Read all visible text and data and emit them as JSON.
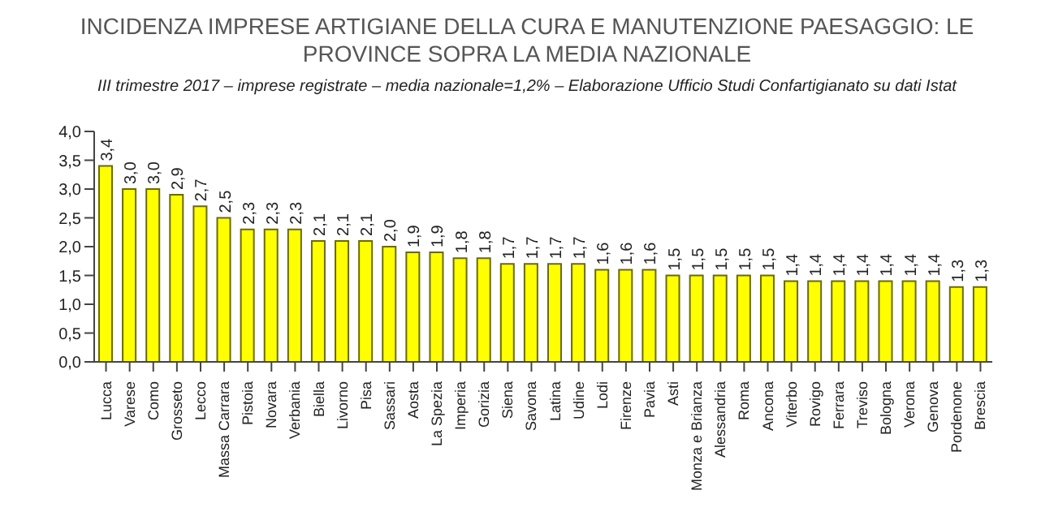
{
  "chart_data": {
    "type": "bar",
    "title": "INCIDENZA IMPRESE ARTIGIANE DELLA CURA E MANUTENZIONE PAESAGGIO: LE PROVINCE SOPRA LA MEDIA NAZIONALE",
    "subtitle": "III trimestre 2017 – imprese registrate – media nazionale=1,2% – Elaborazione Ufficio Studi Confartigianato su dati Istat",
    "categories": [
      "Lucca",
      "Varese",
      "Como",
      "Grosseto",
      "Lecco",
      "Massa Carrara",
      "Pistoia",
      "Novara",
      "Verbania",
      "Biella",
      "Livorno",
      "Pisa",
      "Sassari",
      "Aosta",
      "La Spezia",
      "Imperia",
      "Gorizia",
      "Siena",
      "Savona",
      "Latina",
      "Udine",
      "Lodi",
      "Firenze",
      "Pavia",
      "Asti",
      "Monza e Brianza",
      "Alessandria",
      "Roma",
      "Ancona",
      "Viterbo",
      "Rovigo",
      "Ferrara",
      "Treviso",
      "Bologna",
      "Verona",
      "Genova",
      "Pordenone",
      "Brescia"
    ],
    "values": [
      3.4,
      3.0,
      3.0,
      2.9,
      2.7,
      2.5,
      2.3,
      2.3,
      2.3,
      2.1,
      2.1,
      2.1,
      2.0,
      1.9,
      1.9,
      1.8,
      1.8,
      1.7,
      1.7,
      1.7,
      1.7,
      1.6,
      1.6,
      1.6,
      1.5,
      1.5,
      1.5,
      1.5,
      1.5,
      1.4,
      1.4,
      1.4,
      1.4,
      1.4,
      1.4,
      1.4,
      1.3,
      1.3
    ],
    "value_labels": [
      "3,4",
      "3,0",
      "3,0",
      "2,9",
      "2,7",
      "2,5",
      "2,3",
      "2,3",
      "2,3",
      "2,1",
      "2,1",
      "2,1",
      "2,0",
      "1,9",
      "1,9",
      "1,8",
      "1,8",
      "1,7",
      "1,7",
      "1,7",
      "1,7",
      "1,6",
      "1,6",
      "1,6",
      "1,5",
      "1,5",
      "1,5",
      "1,5",
      "1,5",
      "1,4",
      "1,4",
      "1,4",
      "1,4",
      "1,4",
      "1,4",
      "1,4",
      "1,3",
      "1,3"
    ],
    "color": "#ffff00",
    "ylim": [
      0,
      4
    ],
    "yticks": [
      {
        "value": 0,
        "label": "0,0"
      },
      {
        "value": 0.5,
        "label": "0,5"
      },
      {
        "value": 1,
        "label": "1,0"
      },
      {
        "value": 1.5,
        "label": "1,5"
      },
      {
        "value": 2,
        "label": "2,0"
      },
      {
        "value": 2.5,
        "label": "2,5"
      },
      {
        "value": 3,
        "label": "3,0"
      },
      {
        "value": 3.5,
        "label": "3,5"
      },
      {
        "value": 4,
        "label": "4,0"
      }
    ],
    "grid": false,
    "legend": false
  }
}
